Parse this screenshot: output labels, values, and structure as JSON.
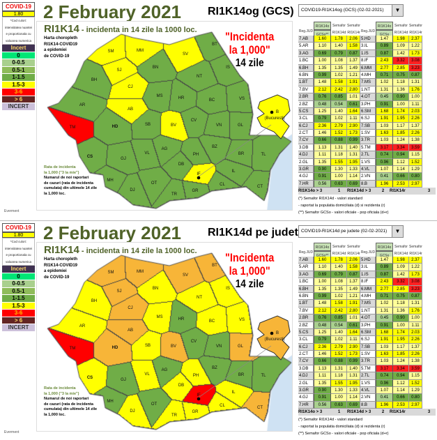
{
  "colors": {
    "green": "#70ad47",
    "yellow": "#ffff00",
    "orange": "#f7b538",
    "red": "#ff0000",
    "olive": "#4f6228"
  },
  "legend": {
    "brand": "COVID-19",
    "value": "1.80",
    "code_lines": [
      "*Cod culori:",
      "intensitatea nuantei",
      "e proportionala cu",
      "valoarea numerica"
    ],
    "items": [
      {
        "label": "Incert",
        "bg": "#3f3151",
        "fg": "#ffd966"
      },
      {
        "label": "0",
        "bg": "#00e676",
        "fg": "#000"
      },
      {
        "label": "0-0.5",
        "bg": "#a9d08e",
        "fg": "#000"
      },
      {
        "label": "0.5-1",
        "bg": "#8fbc5a",
        "fg": "#000"
      },
      {
        "label": "1-1.5",
        "bg": "#70ad47",
        "fg": "#000"
      },
      {
        "label": "1.5-3",
        "bg": "#ffff00",
        "fg": "#000"
      },
      {
        "label": "3-6",
        "bg": "#ff0000",
        "fg": "#ffc000"
      },
      {
        "label": "> 6",
        "bg": "#632523",
        "fg": "#ffd966"
      },
      {
        "label": "INCERT",
        "bg": "#ccc0da",
        "fg": "#333"
      }
    ]
  },
  "map_text": {
    "heading": "RI1K14",
    "heading_rest": " - incidenta in 14 zile la 1000 loc.",
    "choropleth": [
      "Harta choropleth",
      "RI1K14-COVID19",
      "a epidemiei",
      "de COVID-19"
    ],
    "incidenta": [
      "\"Incidenta",
      "la 1,000\""
    ],
    "zile": "14 zile",
    "rata": [
      "Rata de incidenta",
      "la 1,000  (\"3 la mie\")"
    ],
    "numarul": [
      "Numarul de noi raportari",
      "de cazuri (rata de incidenta",
      "cumulata) din ultimele 14 zile",
      "la 1,000 loc."
    ],
    "bucuresti_code": "B",
    "bucuresti_name": "(Bucuresti)"
  },
  "author": "Everment",
  "panels": [
    {
      "title": "2 February 2021",
      "subtitle": "RI1K14og (GCS)",
      "dropdown": "COVID19-RI1K14og (GCS) (02-02-2021)",
      "county_colors": {
        "SM": "yellow",
        "MM": "yellow",
        "SJ": "yellow",
        "CJ": "yellow",
        "AB": "yellow",
        "SV": "yellow",
        "BV": "yellow",
        "IF": "yellow",
        "B": "yellow",
        "TM": "red"
      },
      "default_color": "green"
    },
    {
      "title": "2 February 2021",
      "subtitle": "RI1K14d pe judete",
      "dropdown": "COVID19-RI1K14d pe judete (02-02-2021)",
      "county_colors": {
        "SM": "orange",
        "MM": "orange",
        "SV": "orange",
        "BT": "orange",
        "SJ": "orange",
        "CJ": "orange",
        "AB": "orange",
        "HD": "orange",
        "BV": "orange",
        "GL": "orange",
        "CT": "orange",
        "B": "orange",
        "TM": "red",
        "IF": "red",
        "HR": "green",
        "CV": "green",
        "VN": "green",
        "BZ": "green",
        "BR": "green",
        "TL": "green",
        "GJ": "green",
        "MH": "green",
        "OT": "green",
        "AG": "green"
      },
      "default_color": "yellow"
    }
  ],
  "table": {
    "headers": {
      "group": "RI1K14o",
      "reg": "Reg.JUD",
      "gcso": "GCSo**",
      "gcso2": "GCSo",
      "sem": "Semafor",
      "d": "RI1K14d",
      "r": "RI1K14r"
    },
    "rows": [
      [
        [
          "7.AB",
          "1.60",
          "1.78",
          "2.06"
        ],
        [
          "5.HD",
          "1.47",
          "1.98",
          "2.37"
        ]
      ],
      [
        [
          "5.AR",
          "1.10",
          "1.40",
          "1.58"
        ],
        [
          "3.IL",
          "0.89",
          "1.09",
          "1.22"
        ]
      ],
      [
        [
          "3.AG",
          "0.69",
          "0.79",
          "0.87"
        ],
        [
          "1.IS",
          "0.87",
          "1.42",
          "1.73"
        ]
      ],
      [
        [
          "1.BC",
          "1.00",
          "1.08",
          "1.37"
        ],
        [
          "8.IF",
          "2.43",
          "3.32",
          "3.08"
        ]
      ],
      [
        [
          "6.BH",
          "1.35",
          "1.35",
          "1.49"
        ],
        [
          "6.MM",
          "2.77",
          "2.85",
          "3.23"
        ]
      ],
      [
        [
          "6.BN",
          "0.99",
          "1.02",
          "1.21"
        ],
        [
          "4.MH",
          "0.71",
          "0.75",
          "0.87"
        ]
      ],
      [
        [
          "1.BT",
          "1.48",
          "1.58",
          "1.91"
        ],
        [
          "7.MS",
          "1.02",
          "1.18",
          "1.31"
        ]
      ],
      [
        [
          "7.BV",
          "2.12",
          "2.42",
          "2.80"
        ],
        [
          "1.NT",
          "1.31",
          "1.36",
          "1.76"
        ]
      ],
      [
        [
          "2.BR",
          "0.76",
          "0.85",
          "1.01"
        ],
        [
          "4.OT",
          "0.45",
          "0.90",
          "1.00"
        ]
      ],
      [
        [
          "2.BZ",
          "0.48",
          "0.54",
          "0.61"
        ],
        [
          "3.PH",
          "0.91",
          "1.00",
          "1.11"
        ]
      ],
      [
        [
          "5.CS",
          "1.25",
          "1.40",
          "1.64"
        ],
        [
          "6.SM",
          "1.68",
          "1.74",
          "2.03"
        ]
      ],
      [
        [
          "3.CL",
          "0.79",
          "1.02",
          "1.11"
        ],
        [
          "6.SJ",
          "1.91",
          "1.95",
          "2.26"
        ]
      ],
      [
        [
          "6.CJ",
          "2.36",
          "2.79",
          "2.90"
        ],
        [
          "7.SB",
          "1.03",
          "1.17",
          "1.37"
        ]
      ],
      [
        [
          "2.CT",
          "1.46",
          "1.52",
          "1.73"
        ],
        [
          "1.SV",
          "1.63",
          "1.85",
          "2.26"
        ]
      ],
      [
        [
          "7.CV",
          "0.66",
          "0.88",
          "0.99"
        ],
        [
          "3.TR",
          "1.03",
          "1.24",
          "1.38"
        ]
      ],
      [
        [
          "3.DB",
          "1.13",
          "1.31",
          "1.40"
        ],
        [
          "5.TM",
          "3.17",
          "3.34",
          "3.59"
        ]
      ],
      [
        [
          "4.DJ",
          "1.11",
          "1.18",
          "1.31"
        ],
        [
          "2.TL",
          "0.74",
          "0.94",
          "1.15"
        ]
      ],
      [
        [
          "2.GL",
          "1.35",
          "1.55",
          "1.95"
        ],
        [
          "1.VS",
          "0.96",
          "1.12",
          "1.52"
        ]
      ],
      [
        [
          "3.GR",
          "0.90",
          "1.30",
          "1.33"
        ],
        [
          "4.VL",
          "1.07",
          "1.14",
          "1.29"
        ]
      ],
      [
        [
          "4.GJ",
          "0.91",
          "1.00",
          "1.14"
        ],
        [
          "2.VN",
          "0.41",
          "0.66",
          "0.80"
        ]
      ],
      [
        [
          "7.HR",
          "0.56",
          "0.63",
          "0.69"
        ],
        [
          "8.B",
          "1.96",
          "2.53",
          "2.97"
        ]
      ]
    ],
    "footer": [
      "RI1K14o > 3",
      "1",
      "RI1K14d > 3",
      "2",
      "RI1K14r",
      "3"
    ],
    "notes": [
      "(*) Semafor RI1K14d - valori standard",
      " - raportat la  populatia domiciliata (d) si rezidenta (r)",
      "(**) Semafor GCSo - valori oficiale - pop oficiala (d+r)"
    ]
  }
}
